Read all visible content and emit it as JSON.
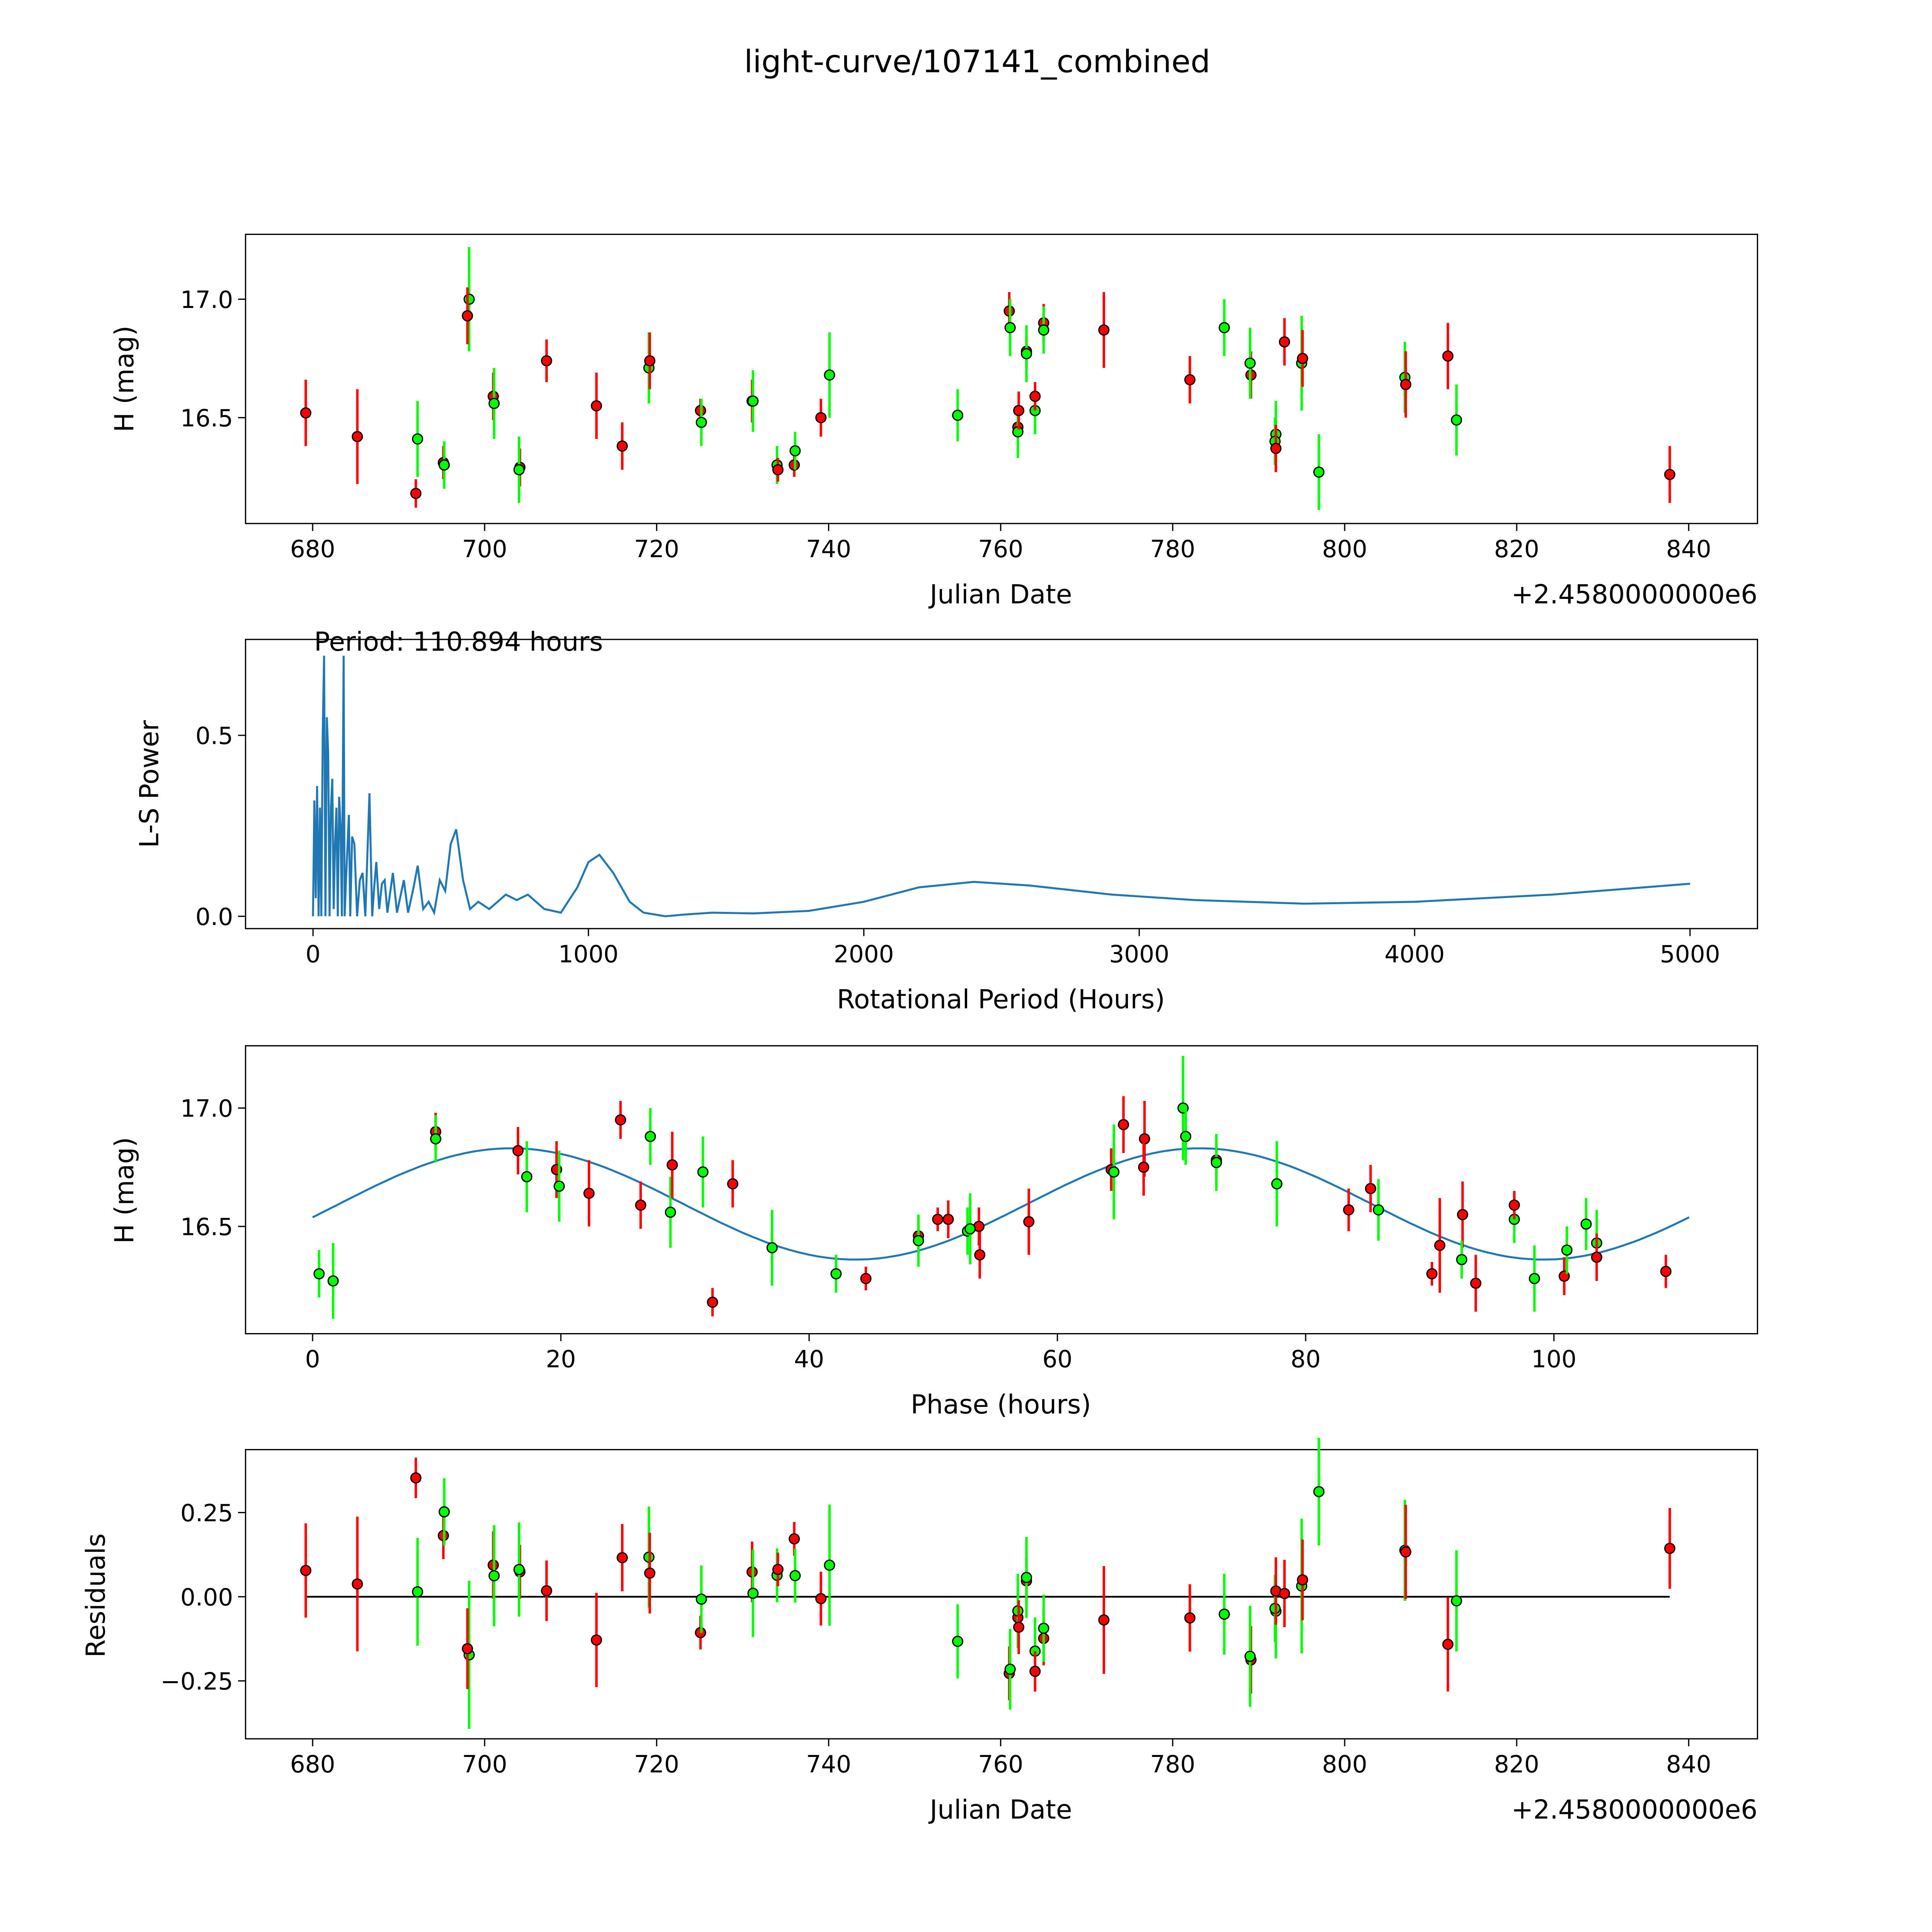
{
  "chart_data": [
    {
      "id": "lightcurve",
      "type": "scatter",
      "title": "light-curve/107141_combined",
      "xlabel": "Julian Date",
      "ylabel": "H (mag)",
      "x_offset_label": "+2.4580000000e6",
      "xlim": [
        672.2,
        848.0
      ],
      "ylim": [
        16.053,
        17.274
      ],
      "xticks": [
        680,
        700,
        720,
        740,
        760,
        780,
        800,
        820,
        840
      ],
      "yticks": [
        16.5,
        17.0
      ],
      "colors": {
        "red": "#ff0000",
        "green": "#00ff00"
      },
      "points": [
        [
          679.2,
          16.52,
          0.14,
          "red"
        ],
        [
          685.2,
          16.42,
          0.2,
          "red"
        ],
        [
          692.2,
          16.41,
          0.16,
          "green"
        ],
        [
          692.0,
          16.18,
          0.06,
          "red"
        ],
        [
          695.2,
          16.31,
          0.07,
          "red"
        ],
        [
          695.3,
          16.3,
          0.1,
          "green"
        ],
        [
          698.2,
          17.0,
          0.22,
          "green"
        ],
        [
          698.0,
          16.93,
          0.12,
          "red"
        ],
        [
          701.0,
          16.59,
          0.1,
          "red"
        ],
        [
          701.1,
          16.56,
          0.15,
          "green"
        ],
        [
          704.1,
          16.29,
          0.08,
          "red"
        ],
        [
          704.0,
          16.28,
          0.14,
          "green"
        ],
        [
          707.2,
          16.74,
          0.09,
          "red"
        ],
        [
          713.0,
          16.55,
          0.14,
          "red"
        ],
        [
          716.0,
          16.38,
          0.1,
          "red"
        ],
        [
          719.1,
          16.71,
          0.15,
          "green"
        ],
        [
          719.2,
          16.74,
          0.12,
          "red"
        ],
        [
          725.1,
          16.53,
          0.05,
          "red"
        ],
        [
          725.2,
          16.48,
          0.1,
          "green"
        ],
        [
          731.1,
          16.57,
          0.09,
          "red"
        ],
        [
          731.2,
          16.57,
          0.13,
          "green"
        ],
        [
          734.0,
          16.3,
          0.08,
          "green"
        ],
        [
          734.1,
          16.28,
          0.05,
          "red"
        ],
        [
          736.0,
          16.3,
          0.05,
          "red"
        ],
        [
          736.1,
          16.36,
          0.08,
          "green"
        ],
        [
          739.1,
          16.5,
          0.08,
          "red"
        ],
        [
          740.1,
          16.68,
          0.18,
          "green"
        ],
        [
          755.0,
          16.51,
          0.11,
          "green"
        ],
        [
          761.0,
          16.95,
          0.08,
          "red"
        ],
        [
          761.1,
          16.88,
          0.12,
          "green"
        ],
        [
          762.0,
          16.46,
          0.08,
          "red"
        ],
        [
          762.0,
          16.44,
          0.11,
          "green"
        ],
        [
          762.1,
          16.53,
          0.08,
          "red"
        ],
        [
          763.0,
          16.78,
          0.07,
          "red"
        ],
        [
          763.0,
          16.77,
          0.12,
          "green"
        ],
        [
          764.0,
          16.53,
          0.1,
          "green"
        ],
        [
          764.0,
          16.59,
          0.06,
          "red"
        ],
        [
          765.0,
          16.9,
          0.08,
          "red"
        ],
        [
          765.0,
          16.87,
          0.1,
          "green"
        ],
        [
          772.0,
          16.87,
          0.16,
          "red"
        ],
        [
          782.0,
          16.66,
          0.1,
          "red"
        ],
        [
          786.0,
          16.88,
          0.12,
          "green"
        ],
        [
          789.1,
          16.68,
          0.1,
          "red"
        ],
        [
          789.0,
          16.73,
          0.15,
          "green"
        ],
        [
          792.0,
          16.43,
          0.14,
          "green"
        ],
        [
          791.9,
          16.4,
          0.1,
          "green"
        ],
        [
          792.0,
          16.37,
          0.1,
          "red"
        ],
        [
          793.0,
          16.82,
          0.1,
          "red"
        ],
        [
          795.0,
          16.73,
          0.2,
          "green"
        ],
        [
          795.1,
          16.75,
          0.12,
          "red"
        ],
        [
          797.0,
          16.27,
          0.16,
          "green"
        ],
        [
          807.0,
          16.67,
          0.15,
          "green"
        ],
        [
          807.1,
          16.64,
          0.14,
          "red"
        ],
        [
          812.0,
          16.76,
          0.14,
          "red"
        ],
        [
          813.0,
          16.49,
          0.15,
          "green"
        ],
        [
          837.8,
          16.26,
          0.12,
          "red"
        ]
      ]
    },
    {
      "id": "periodogram",
      "type": "line",
      "annotation": "Period: 110.894 hours",
      "period_hours": 110.894,
      "xlabel": "Rotational Period (Hours)",
      "ylabel": "L-S Power",
      "xlim": [
        -245,
        5245
      ],
      "ylim": [
        -0.034,
        0.765
      ],
      "xticks": [
        0,
        1000,
        2000,
        3000,
        4000,
        5000
      ],
      "yticks": [
        0.0,
        0.5
      ],
      "color": "#1f77b4",
      "points": [
        [
          0,
          0
        ],
        [
          5,
          0.32
        ],
        [
          10,
          0.05
        ],
        [
          15,
          0.36
        ],
        [
          20,
          0
        ],
        [
          25,
          0.3
        ],
        [
          30,
          0
        ],
        [
          35,
          0.5
        ],
        [
          40,
          0.72
        ],
        [
          45,
          0
        ],
        [
          50,
          0.55
        ],
        [
          55,
          0.45
        ],
        [
          60,
          0
        ],
        [
          65,
          0.3
        ],
        [
          70,
          0.38
        ],
        [
          75,
          0.02
        ],
        [
          80,
          0.2
        ],
        [
          85,
          0.3
        ],
        [
          90,
          0
        ],
        [
          95,
          0.33
        ],
        [
          100,
          0.25
        ],
        [
          105,
          0
        ],
        [
          111,
          0.72
        ],
        [
          115,
          0
        ],
        [
          120,
          0.1
        ],
        [
          130,
          0.28
        ],
        [
          135,
          0
        ],
        [
          142,
          0.22
        ],
        [
          150,
          0.2
        ],
        [
          160,
          0
        ],
        [
          170,
          0.1
        ],
        [
          180,
          0.12
        ],
        [
          190,
          0
        ],
        [
          205,
          0.34
        ],
        [
          215,
          0
        ],
        [
          222,
          0.08
        ],
        [
          230,
          0.15
        ],
        [
          240,
          0.02
        ],
        [
          250,
          0.09
        ],
        [
          260,
          0.1
        ],
        [
          270,
          0.01
        ],
        [
          290,
          0.12
        ],
        [
          305,
          0.01
        ],
        [
          330,
          0.1
        ],
        [
          345,
          0.01
        ],
        [
          365,
          0.08
        ],
        [
          380,
          0.14
        ],
        [
          400,
          0.02
        ],
        [
          420,
          0.04
        ],
        [
          440,
          0.01
        ],
        [
          460,
          0.1
        ],
        [
          480,
          0.07
        ],
        [
          500,
          0.2
        ],
        [
          520,
          0.24
        ],
        [
          545,
          0.1
        ],
        [
          570,
          0.02
        ],
        [
          600,
          0.04
        ],
        [
          640,
          0.02
        ],
        [
          700,
          0.06
        ],
        [
          740,
          0.045
        ],
        [
          780,
          0.06
        ],
        [
          840,
          0.02
        ],
        [
          900,
          0.01
        ],
        [
          960,
          0.08
        ],
        [
          1000,
          0.15
        ],
        [
          1040,
          0.17
        ],
        [
          1090,
          0.12
        ],
        [
          1150,
          0.04
        ],
        [
          1200,
          0.01
        ],
        [
          1280,
          0.0
        ],
        [
          1350,
          0.005
        ],
        [
          1450,
          0.01
        ],
        [
          1600,
          0.008
        ],
        [
          1800,
          0.015
        ],
        [
          2000,
          0.04
        ],
        [
          2200,
          0.08
        ],
        [
          2400,
          0.095
        ],
        [
          2600,
          0.085
        ],
        [
          2900,
          0.06
        ],
        [
          3200,
          0.045
        ],
        [
          3600,
          0.035
        ],
        [
          4000,
          0.04
        ],
        [
          4500,
          0.06
        ],
        [
          5000,
          0.09
        ]
      ]
    },
    {
      "id": "phased",
      "type": "scatter",
      "xlabel": "Phase (hours)",
      "ylabel": "H (mag)",
      "xlim": [
        -5.4,
        116.4
      ],
      "ylim": [
        16.047,
        17.263
      ],
      "xticks": [
        0,
        20,
        40,
        60,
        80,
        100
      ],
      "yticks": [
        16.5,
        17.0
      ],
      "model": {
        "mean": 16.595,
        "amplitude": 0.235,
        "peak_phase_hours": 16.0,
        "color": "#1f77b4"
      }
    },
    {
      "id": "residuals",
      "type": "scatter",
      "xlabel": "Julian Date",
      "ylabel": "Residuals",
      "x_offset_label": "+2.4580000000e6",
      "xlim": [
        672.2,
        848.0
      ],
      "ylim": [
        -0.422,
        0.437
      ],
      "xticks": [
        680,
        700,
        720,
        740,
        760,
        780,
        800,
        820,
        840
      ],
      "yticks": [
        -0.25,
        0.0,
        0.25
      ],
      "ytick_labels": [
        "−0.25",
        "0.00",
        "0.25"
      ]
    }
  ]
}
